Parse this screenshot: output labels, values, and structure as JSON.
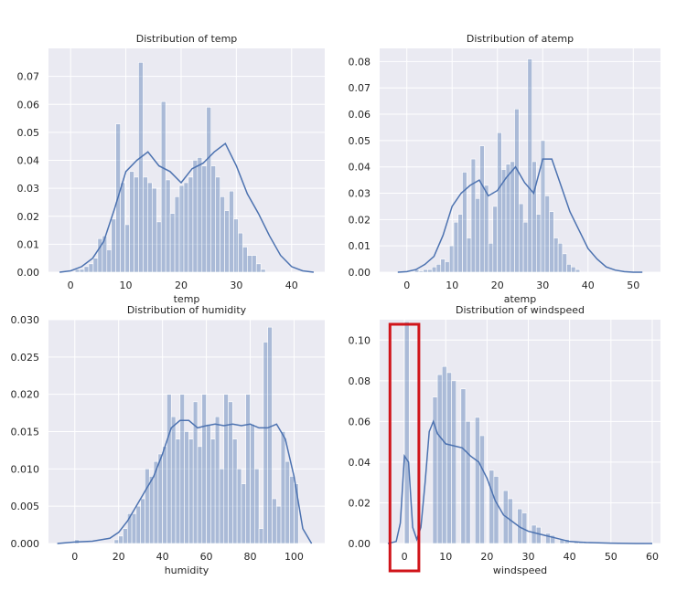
{
  "chart_data": [
    {
      "type": "bar",
      "title": "Distribution of temp",
      "xlabel": "temp",
      "ylabel": "",
      "xlim": [
        -4,
        46
      ],
      "ylim": [
        0,
        0.08
      ],
      "xticks": [
        0,
        10,
        20,
        30,
        40
      ],
      "yticks": [
        0.0,
        0.01,
        0.02,
        0.03,
        0.04,
        0.05,
        0.06,
        0.07
      ],
      "ytick_labels": [
        "0.00",
        "0.01",
        "0.02",
        "0.03",
        "0.04",
        "0.05",
        "0.06",
        "0.07"
      ],
      "grid": true,
      "histogram": {
        "bin_start": 0.82,
        "bin_width": 0.82,
        "values": [
          0.001,
          0.001,
          0.002,
          0.003,
          0.005,
          0.012,
          0.013,
          0.008,
          0.019,
          0.053,
          0.032,
          0.017,
          0.036,
          0.034,
          0.075,
          0.034,
          0.032,
          0.03,
          0.018,
          0.061,
          0.033,
          0.021,
          0.027,
          0.031,
          0.032,
          0.034,
          0.04,
          0.041,
          0.038,
          0.059,
          0.038,
          0.034,
          0.027,
          0.022,
          0.029,
          0.019,
          0.014,
          0.009,
          0.006,
          0.006,
          0.003,
          0.001
        ]
      },
      "kde": {
        "x": [
          -2,
          0,
          2,
          4,
          6,
          8,
          10,
          12,
          14,
          16,
          18,
          20,
          22,
          24,
          26,
          28,
          30,
          32,
          34,
          36,
          38,
          40,
          42,
          44
        ],
        "y": [
          0,
          0.0005,
          0.002,
          0.005,
          0.011,
          0.023,
          0.036,
          0.04,
          0.043,
          0.038,
          0.036,
          0.032,
          0.037,
          0.039,
          0.043,
          0.046,
          0.038,
          0.028,
          0.021,
          0.013,
          0.006,
          0.002,
          0.0005,
          0
        ]
      }
    },
    {
      "type": "bar",
      "title": "Distribution of atemp",
      "xlabel": "atemp",
      "ylabel": "",
      "xlim": [
        -6,
        56
      ],
      "ylim": [
        0,
        0.085
      ],
      "xticks": [
        0,
        10,
        20,
        30,
        40,
        50
      ],
      "yticks": [
        0.0,
        0.01,
        0.02,
        0.03,
        0.04,
        0.05,
        0.06,
        0.07,
        0.08
      ],
      "ytick_labels": [
        "0.00",
        "0.01",
        "0.02",
        "0.03",
        "0.04",
        "0.05",
        "0.06",
        "0.07",
        "0.08"
      ],
      "grid": true,
      "histogram": {
        "bin_start": 0.76,
        "bin_width": 0.96,
        "values": [
          0,
          0.001,
          0.0005,
          0.001,
          0.001,
          0.002,
          0.003,
          0.005,
          0.004,
          0.01,
          0.019,
          0.022,
          0.038,
          0.013,
          0.043,
          0.028,
          0.048,
          0.033,
          0.011,
          0.025,
          0.053,
          0.039,
          0.041,
          0.042,
          0.062,
          0.026,
          0.019,
          0.081,
          0.042,
          0.022,
          0.05,
          0.029,
          0.023,
          0.013,
          0.011,
          0.007,
          0.003,
          0.002,
          0.001
        ]
      },
      "kde": {
        "x": [
          -2,
          0,
          2,
          4,
          6,
          8,
          10,
          12,
          14,
          16,
          18,
          20,
          22,
          24,
          26,
          28,
          30,
          32,
          34,
          36,
          38,
          40,
          42,
          44,
          46,
          48,
          50,
          52
        ],
        "y": [
          0,
          0.0002,
          0.001,
          0.003,
          0.006,
          0.014,
          0.025,
          0.03,
          0.033,
          0.035,
          0.029,
          0.031,
          0.036,
          0.04,
          0.034,
          0.03,
          0.043,
          0.043,
          0.033,
          0.023,
          0.016,
          0.009,
          0.005,
          0.002,
          0.0008,
          0.0002,
          0,
          0
        ]
      }
    },
    {
      "type": "bar",
      "title": "Distribution of humidity",
      "xlabel": "humidity",
      "ylabel": "",
      "xlim": [
        -12,
        114
      ],
      "ylim": [
        0,
        0.03
      ],
      "xticks": [
        0,
        20,
        40,
        60,
        80,
        100
      ],
      "yticks": [
        0.0,
        0.005,
        0.01,
        0.015,
        0.02,
        0.025,
        0.03
      ],
      "ytick_labels": [
        "0.000",
        "0.005",
        "0.010",
        "0.015",
        "0.020",
        "0.025",
        "0.030"
      ],
      "grid": true,
      "histogram": {
        "bin_start": 0,
        "bin_width": 2,
        "values": [
          0.0005,
          0,
          0,
          0,
          0,
          0,
          0,
          0,
          0,
          0.0005,
          0.001,
          0.002,
          0.004,
          0.004,
          0.005,
          0.006,
          0.01,
          0.009,
          0.011,
          0.012,
          0.013,
          0.02,
          0.017,
          0.014,
          0.02,
          0.015,
          0.014,
          0.019,
          0.013,
          0.02,
          0.016,
          0.014,
          0.017,
          0.01,
          0.02,
          0.019,
          0.014,
          0.01,
          0.008,
          0.02,
          0.016,
          0.01,
          0.002,
          0.027,
          0.029,
          0.006,
          0.005,
          0.015,
          0.011,
          0.009,
          0.008
        ]
      },
      "kde": {
        "x": [
          -8,
          0,
          8,
          16,
          20,
          24,
          28,
          32,
          36,
          40,
          44,
          48,
          52,
          56,
          60,
          64,
          68,
          72,
          76,
          80,
          84,
          88,
          92,
          96,
          100,
          104,
          108
        ],
        "y": [
          0,
          0.0002,
          0.0003,
          0.0007,
          0.0015,
          0.003,
          0.005,
          0.007,
          0.009,
          0.012,
          0.0155,
          0.0165,
          0.0165,
          0.0155,
          0.0158,
          0.016,
          0.0158,
          0.016,
          0.0158,
          0.016,
          0.0155,
          0.0155,
          0.016,
          0.014,
          0.009,
          0.002,
          0
        ]
      }
    },
    {
      "type": "bar",
      "title": "Distribution of windspeed",
      "xlabel": "windspeed",
      "ylabel": "",
      "xlim": [
        -6,
        62
      ],
      "ylim": [
        0,
        0.11
      ],
      "xticks": [
        0,
        10,
        20,
        30,
        40,
        50,
        60
      ],
      "yticks": [
        0.0,
        0.02,
        0.04,
        0.06,
        0.08,
        0.1
      ],
      "ytick_labels": [
        "0.00",
        "0.02",
        "0.04",
        "0.06",
        "0.08",
        "0.10"
      ],
      "grid": true,
      "histogram": {
        "bin_start": 0,
        "bin_width": 1.14,
        "values": [
          0.109,
          0,
          0,
          0,
          0,
          0,
          0.072,
          0.083,
          0.087,
          0.084,
          0.08,
          0,
          0.076,
          0.06,
          0,
          0.062,
          0.053,
          0,
          0.036,
          0.033,
          0,
          0.026,
          0.022,
          0,
          0.017,
          0.015,
          0,
          0.009,
          0.008,
          0,
          0.005,
          0.004,
          0,
          0.002,
          0.002,
          0,
          0.001,
          0.001,
          0.0005,
          0.0005,
          0,
          0.0003,
          0.0003,
          0,
          0,
          0,
          0,
          0,
          0,
          0,
          0,
          0.0002
        ]
      },
      "kde": {
        "x": [
          -4,
          -2,
          -1,
          0,
          1,
          2,
          3,
          4,
          5,
          6,
          7,
          8,
          10,
          12,
          14,
          16,
          18,
          20,
          22,
          24,
          26,
          28,
          30,
          32,
          34,
          36,
          40,
          44,
          50,
          56,
          60
        ],
        "y": [
          0,
          0.001,
          0.01,
          0.043,
          0.04,
          0.008,
          0.002,
          0.008,
          0.03,
          0.055,
          0.06,
          0.054,
          0.049,
          0.048,
          0.047,
          0.043,
          0.04,
          0.032,
          0.021,
          0.014,
          0.011,
          0.008,
          0.006,
          0.005,
          0.004,
          0.003,
          0.001,
          0.0005,
          0.0002,
          0,
          0
        ]
      },
      "highlight_box": {
        "from_x": -3.5,
        "to_x": 3.5
      }
    }
  ]
}
